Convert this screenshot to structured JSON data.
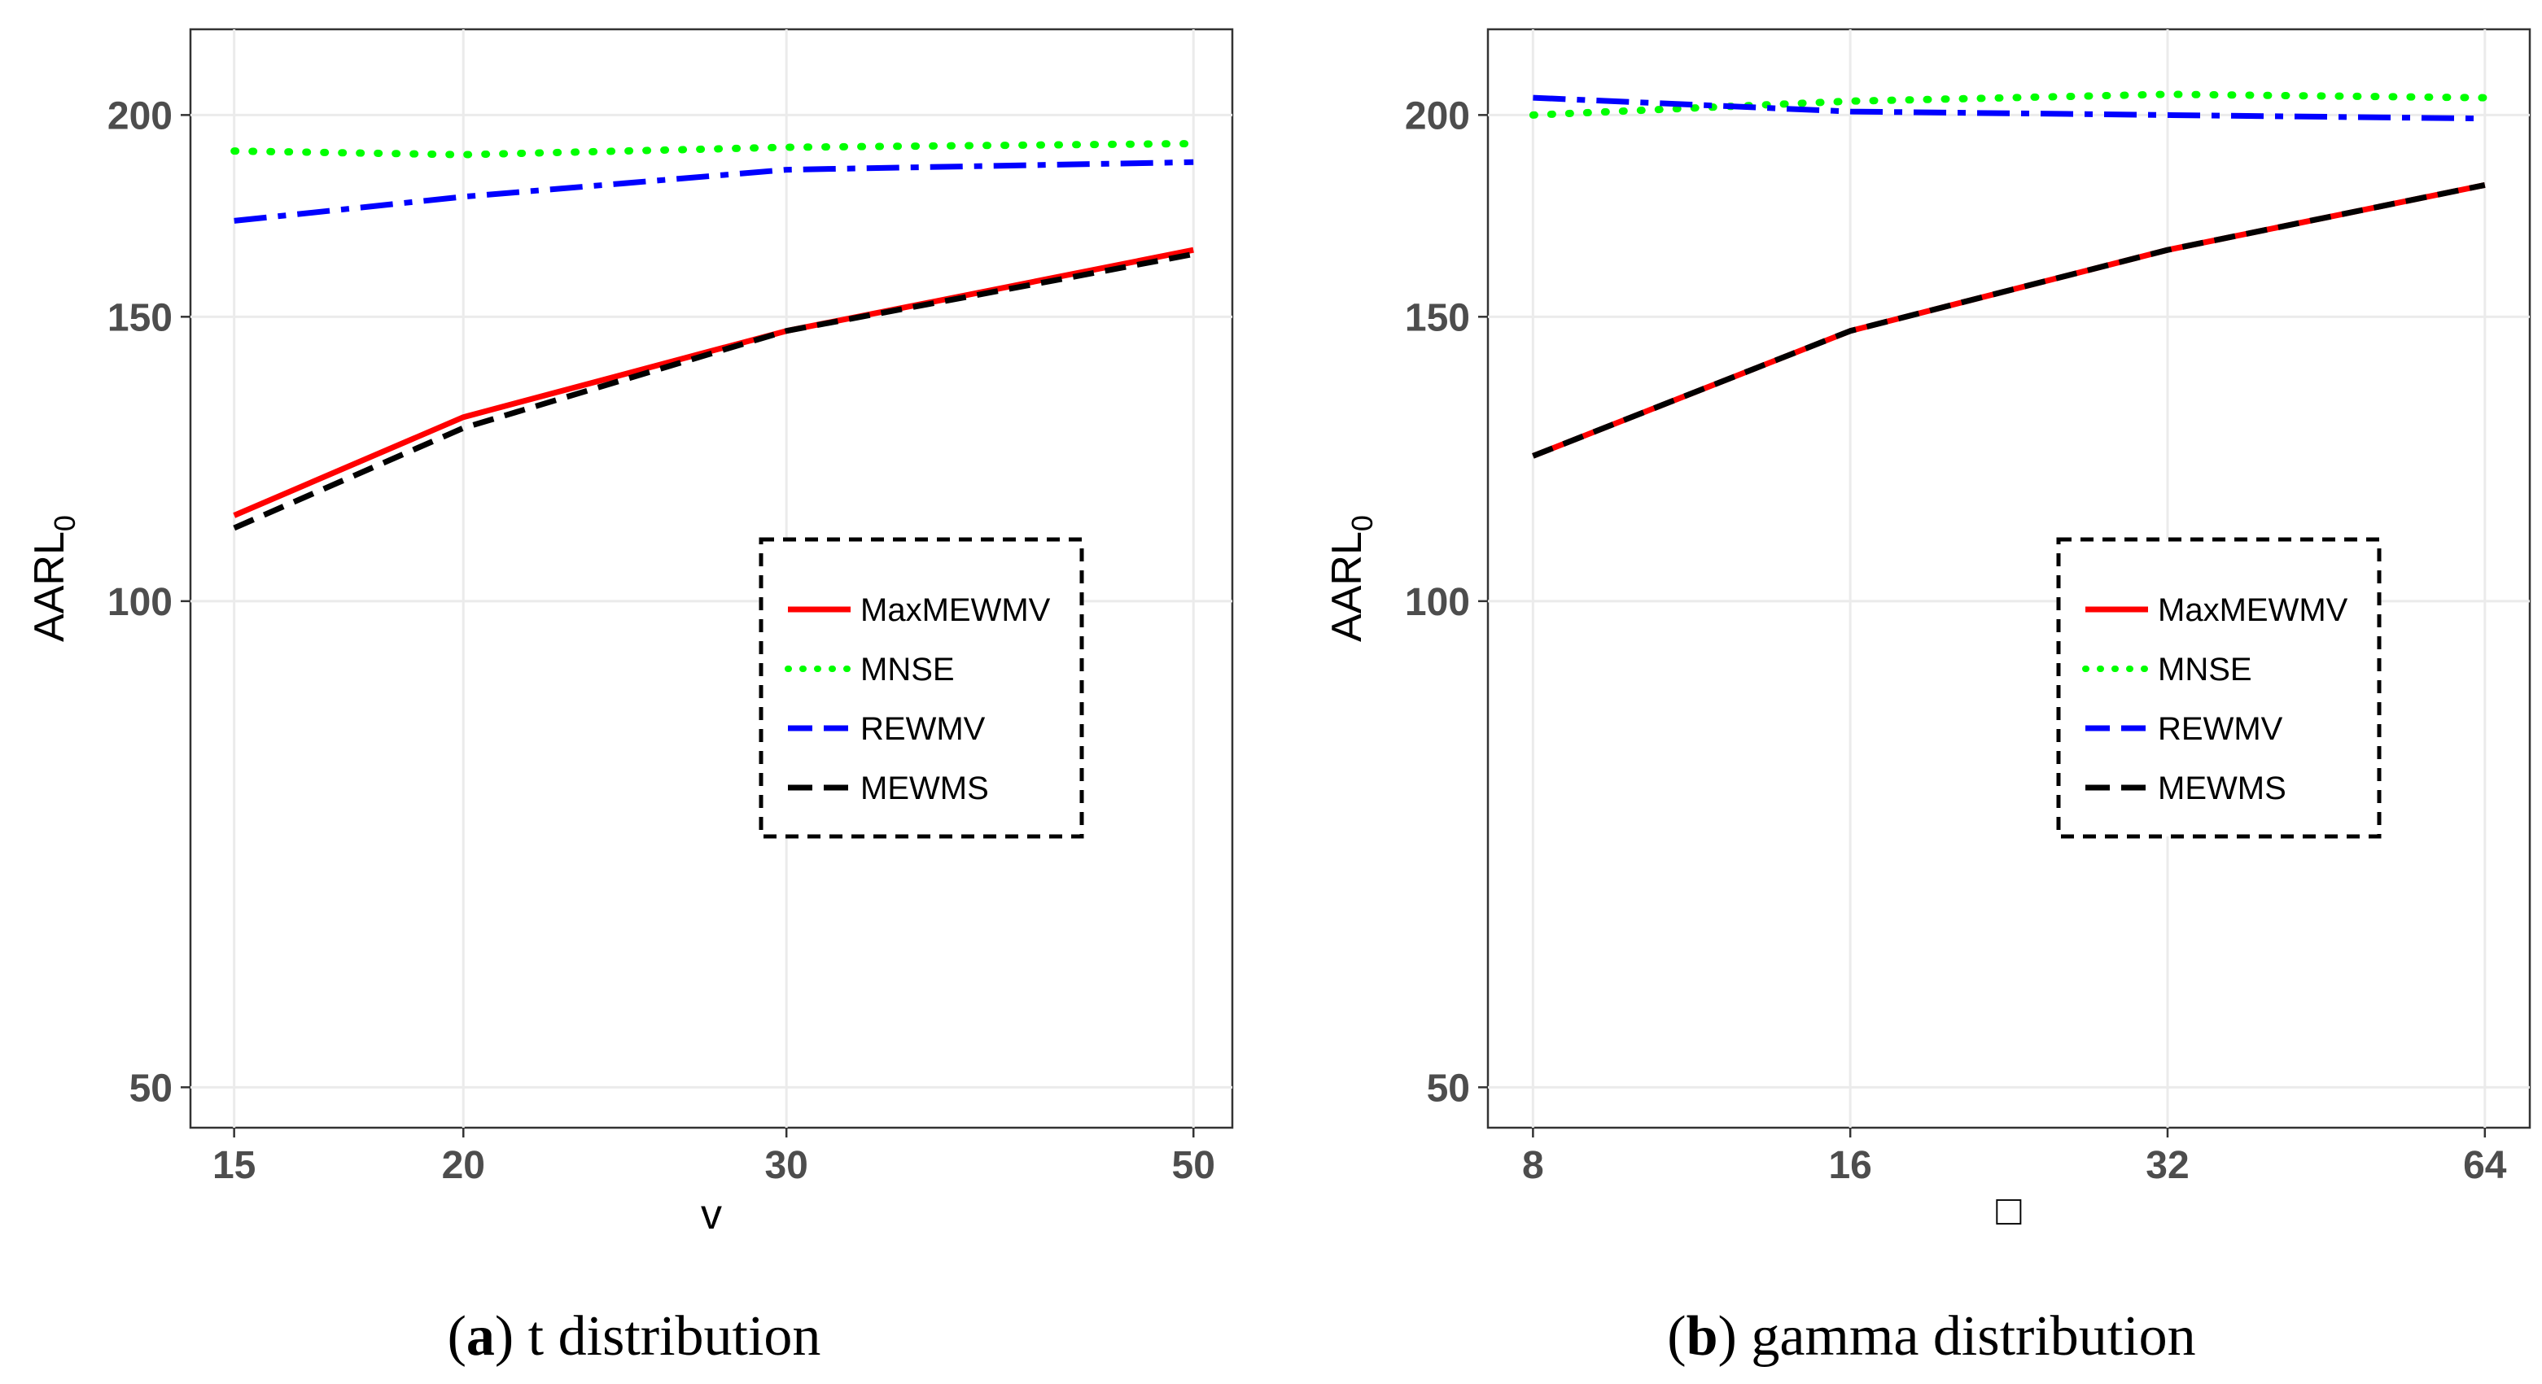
{
  "chart_data": [
    {
      "type": "line",
      "caption_letter": "a",
      "caption_text": ") t distribution",
      "caption_open": "(",
      "xlabel": "v",
      "ylabel": "AARL",
      "ylabel_subscript": "0",
      "y_scale": "log",
      "x_scale": "log",
      "x": [
        15,
        20,
        30,
        50
      ],
      "x_tick_labels": [
        "15",
        "20",
        "30",
        "50"
      ],
      "y_ticks": [
        50,
        100,
        150,
        200
      ],
      "y_tick_labels": [
        "50",
        "100",
        "150",
        "200"
      ],
      "xlim": [
        14.2,
        52.5
      ],
      "ylim": [
        47.2,
        226
      ],
      "legend_position": "center-right",
      "series": [
        {
          "name": "MaxMEWMV",
          "color": "#ff0000",
          "style": "solid",
          "values": [
            113,
            130,
            147,
            165
          ]
        },
        {
          "name": "MNSE",
          "color": "#00ff00",
          "style": "dotted",
          "values": [
            190,
            189,
            191,
            192
          ]
        },
        {
          "name": "REWMV",
          "color": "#0000ff",
          "style": "dashdot",
          "values": [
            172,
            178,
            185,
            187
          ]
        },
        {
          "name": "MEWMS",
          "color": "#000000",
          "style": "dashed",
          "values": [
            111,
            128,
            147,
            164
          ]
        }
      ]
    },
    {
      "type": "line",
      "caption_letter": "b",
      "caption_text": ") gamma distribution",
      "caption_open": "(",
      "xlabel": "□",
      "ylabel": "AARL",
      "ylabel_subscript": "0",
      "y_scale": "log",
      "x_scale": "log",
      "x": [
        8,
        16,
        32,
        64
      ],
      "x_tick_labels": [
        "8",
        "16",
        "32",
        "64"
      ],
      "y_ticks": [
        50,
        100,
        150,
        200
      ],
      "y_tick_labels": [
        "50",
        "100",
        "150",
        "200"
      ],
      "xlim": [
        7.25,
        70.6
      ],
      "ylim": [
        47.2,
        226
      ],
      "legend_position": "center-right",
      "series": [
        {
          "name": "MaxMEWMV",
          "color": "#ff0000",
          "style": "solid",
          "values": [
            123,
            147,
            165,
            181
          ]
        },
        {
          "name": "MNSE",
          "color": "#00ff00",
          "style": "dotted",
          "values": [
            200,
            204,
            206,
            205
          ]
        },
        {
          "name": "REWMV",
          "color": "#0000ff",
          "style": "dashdot",
          "values": [
            205,
            201,
            200,
            199
          ]
        },
        {
          "name": "MEWMS",
          "color": "#000000",
          "style": "dashed",
          "values": [
            123,
            147,
            165,
            181
          ]
        }
      ]
    }
  ]
}
